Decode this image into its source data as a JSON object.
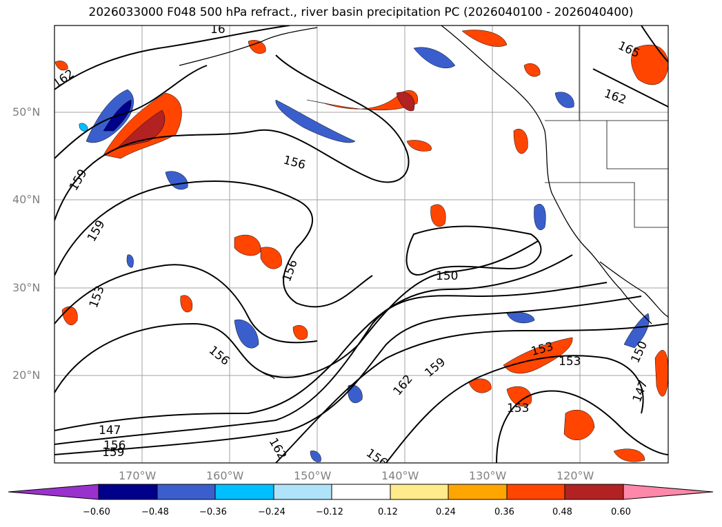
{
  "title": "2026033000 F048 500 hPa refract., river basin precipitation PC (2026040100 - 2026040400)",
  "axes": {
    "lat_labels": [
      "50°N",
      "40°N",
      "30°N",
      "20°N"
    ],
    "lon_labels": [
      "170°W",
      "160°W",
      "150°W",
      "140°W",
      "130°W",
      "120°W"
    ]
  },
  "contour_labels": [
    "162",
    "165",
    "162",
    "156",
    "159",
    "159",
    "153",
    "156",
    "150",
    "156",
    "153",
    "150",
    "147",
    "162",
    "159",
    "153",
    "147",
    "156",
    "159",
    "162",
    "156",
    "16"
  ],
  "colorbar": {
    "ticks": [
      "−0.60",
      "−0.48",
      "−0.36",
      "−0.24",
      "−0.12",
      "0.12",
      "0.24",
      "0.36",
      "0.48",
      "0.60"
    ],
    "colors": [
      "#9932cc",
      "#00008b",
      "#3a5fcd",
      "#00bfff",
      "#afe3fa",
      "#ffffff",
      "#ffeb8c",
      "#ffa500",
      "#ff4500",
      "#b22222",
      "#ff88aa"
    ]
  }
}
